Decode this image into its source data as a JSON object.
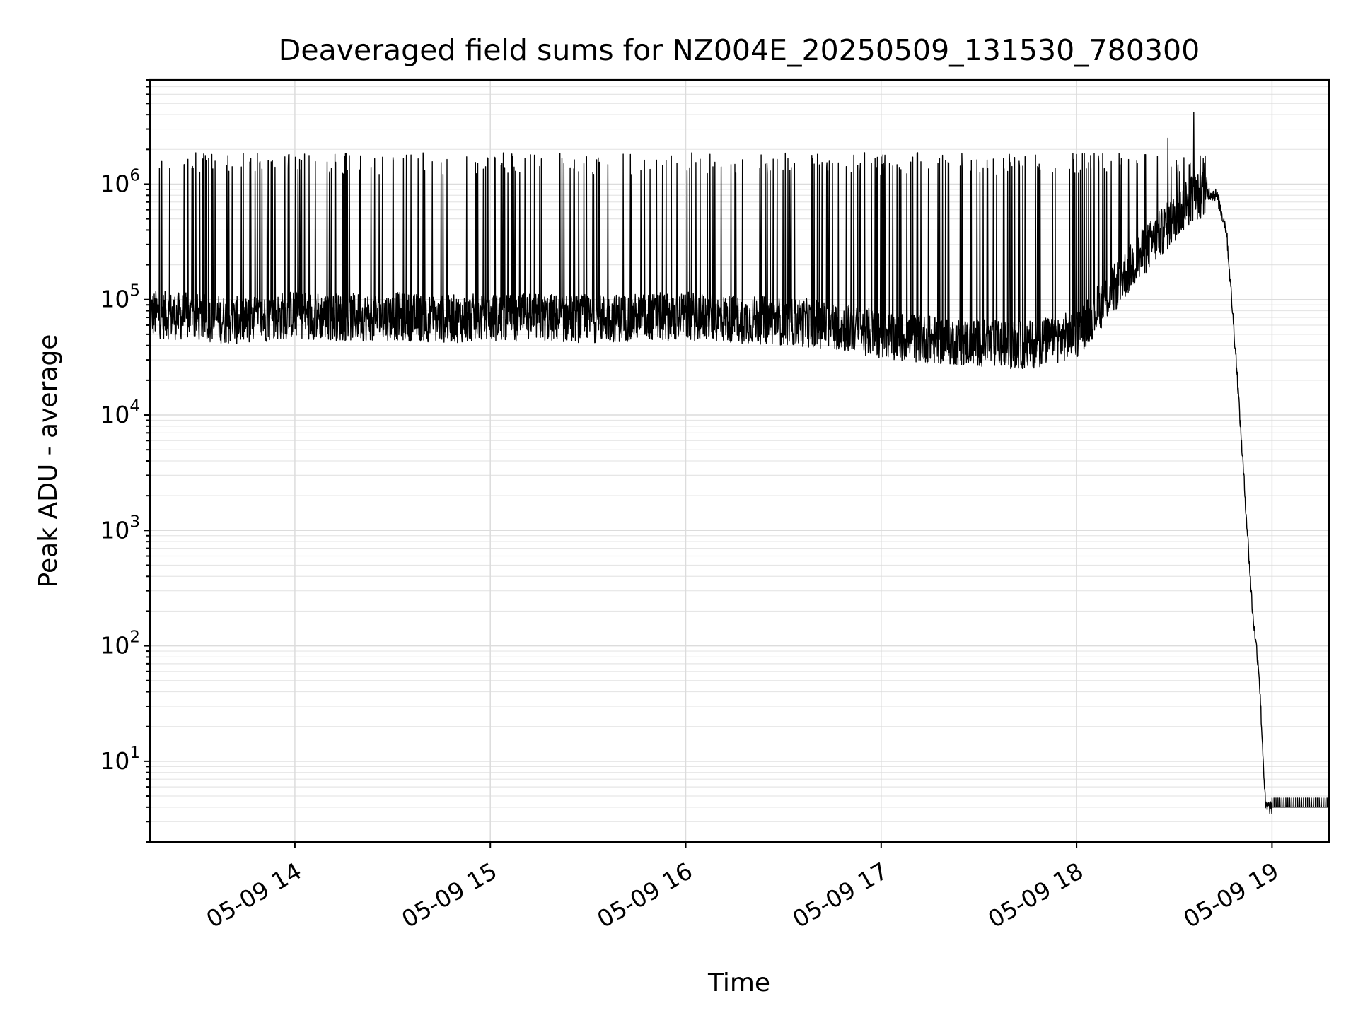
{
  "chart_data": {
    "type": "line",
    "title": "Deaveraged field sums for NZ004E_20250509_131530_780300",
    "xlabel": "Time",
    "ylabel": "Peak ADU - average",
    "x_scale": "time",
    "y_scale": "log",
    "xlim": [
      "2025-05-09 13:15:30",
      "2025-05-09 19:17:30"
    ],
    "ylim": [
      2,
      8000000
    ],
    "x_ticks": [
      {
        "time": "2025-05-09 14:00",
        "label": "05-09 14"
      },
      {
        "time": "2025-05-09 15:00",
        "label": "05-09 15"
      },
      {
        "time": "2025-05-09 16:00",
        "label": "05-09 16"
      },
      {
        "time": "2025-05-09 17:00",
        "label": "05-09 17"
      },
      {
        "time": "2025-05-09 18:00",
        "label": "05-09 18"
      },
      {
        "time": "2025-05-09 19:00",
        "label": "05-09 19"
      }
    ],
    "y_ticks": [
      {
        "value": 10,
        "base": "10",
        "exp": "1"
      },
      {
        "value": 100,
        "base": "10",
        "exp": "2"
      },
      {
        "value": 1000,
        "base": "10",
        "exp": "3"
      },
      {
        "value": 10000,
        "base": "10",
        "exp": "4"
      },
      {
        "value": 100000,
        "base": "10",
        "exp": "5"
      },
      {
        "value": 1000000,
        "base": "10",
        "exp": "6"
      }
    ],
    "grid": true,
    "series": [
      {
        "color": "#000000",
        "x": [
          "2025-05-09 13:15:30",
          "2025-05-09 13:30",
          "2025-05-09 13:45",
          "2025-05-09 14:00",
          "2025-05-09 14:15",
          "2025-05-09 14:30",
          "2025-05-09 14:45",
          "2025-05-09 15:00",
          "2025-05-09 15:15",
          "2025-05-09 15:30",
          "2025-05-09 15:45",
          "2025-05-09 16:00",
          "2025-05-09 16:15",
          "2025-05-09 16:30",
          "2025-05-09 16:45",
          "2025-05-09 17:00",
          "2025-05-09 17:15",
          "2025-05-09 17:30",
          "2025-05-09 17:45",
          "2025-05-09 18:00",
          "2025-05-09 18:10",
          "2025-05-09 18:20",
          "2025-05-09 18:30",
          "2025-05-09 18:35",
          "2025-05-09 18:40",
          "2025-05-09 18:43",
          "2025-05-09 18:46",
          "2025-05-09 18:49",
          "2025-05-09 18:52",
          "2025-05-09 18:54",
          "2025-05-09 18:56",
          "2025-05-09 18:58",
          "2025-05-09 19:00",
          "2025-05-09 19:17"
        ],
        "values": [
          75000,
          70000,
          65000,
          75000,
          70000,
          72000,
          68000,
          70000,
          70000,
          68000,
          70000,
          72000,
          68000,
          65000,
          60000,
          50000,
          45000,
          42000,
          40000,
          50000,
          110000,
          250000,
          500000,
          750000,
          850000,
          800000,
          400000,
          30000,
          1500,
          200,
          60,
          4,
          4,
          4
        ],
        "spikes": {
          "description_range": "2025-05-09 13:15 to 2025-05-09 18:40",
          "typical_value": 1500000,
          "max_values": [
            {
              "time": "2025-05-09 18:28",
              "value": 2500000
            },
            {
              "time": "2025-05-09 18:36",
              "value": 4200000
            }
          ]
        }
      }
    ]
  }
}
